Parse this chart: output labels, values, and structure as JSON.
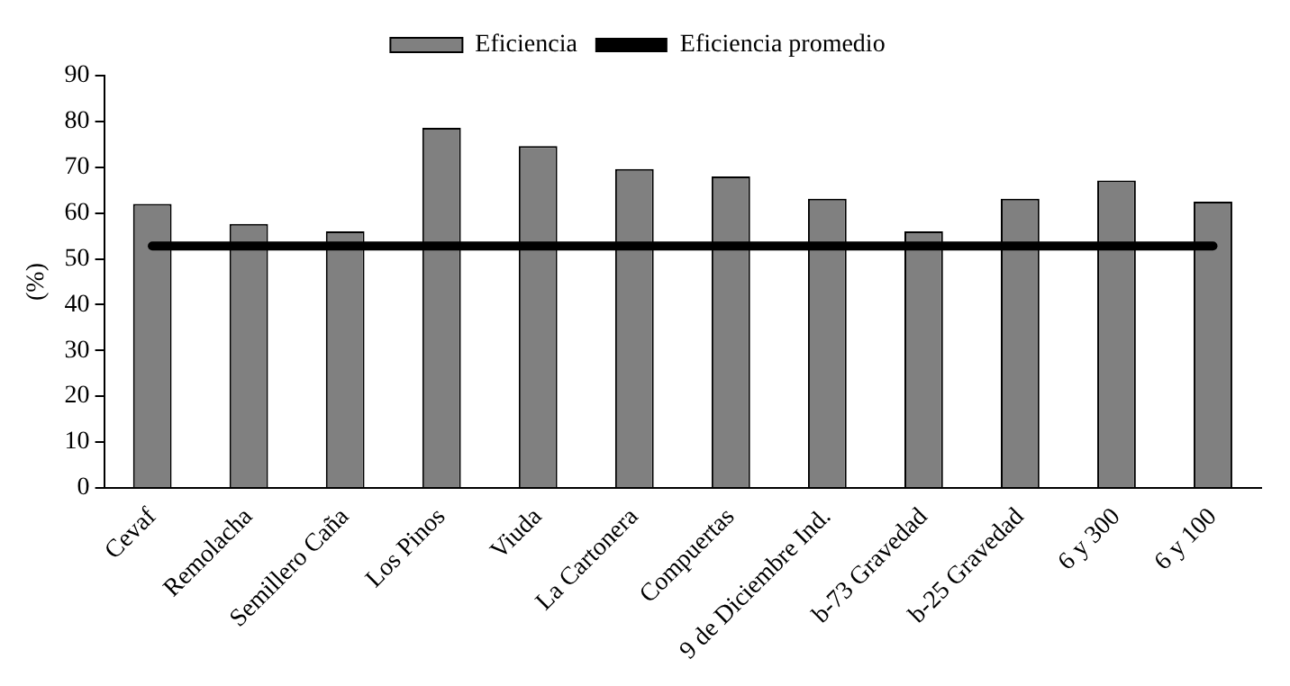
{
  "chart_data": {
    "type": "bar",
    "ylabel": "(%)",
    "categories": [
      "Cevaf",
      "Remolacha",
      "Semillero Caña",
      "Los Pinos",
      "Viuda",
      "La Cartonera",
      "Compuertas",
      "9 de Diciembre Ind.",
      "b-73 Gravedad",
      "b-25 Gravedad",
      "6 y 300",
      "6 y 100"
    ],
    "series": [
      {
        "name": "Eficiencia",
        "color": "#808080",
        "values": [
          62,
          57.6,
          56,
          78.6,
          74.6,
          69.6,
          68,
          63.1,
          56,
          63.1,
          67.1,
          62.5
        ]
      },
      {
        "name": "Eficiencia promedio",
        "type": "line",
        "color": "#000000",
        "values": [
          52.8,
          52.8,
          52.8,
          52.8,
          52.8,
          52.8,
          52.8,
          52.8,
          52.8,
          52.8,
          52.8,
          52.8
        ]
      }
    ],
    "ylim": [
      0,
      90
    ],
    "yticks": [
      0,
      10,
      20,
      30,
      40,
      50,
      60,
      70,
      80,
      90
    ],
    "grid": false,
    "legend": "top",
    "marker": "none"
  }
}
